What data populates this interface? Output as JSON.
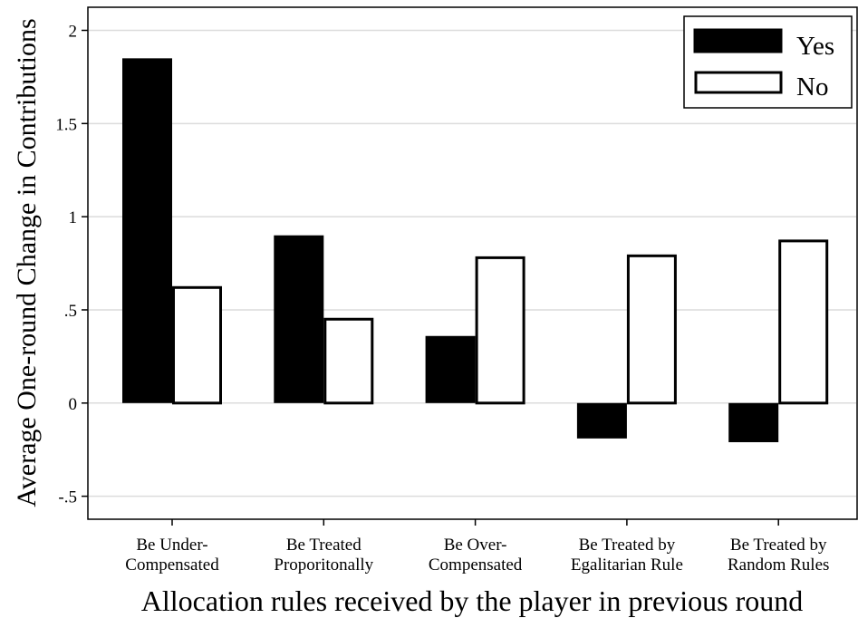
{
  "chart_data": {
    "type": "bar",
    "title": "",
    "xlabel": "Allocation rules received by the player in previous round",
    "ylabel": "Average One-round Change in Contributions",
    "ylim": [
      -0.62,
      2.12
    ],
    "yticks": [
      {
        "value": 2,
        "label": "2"
      },
      {
        "value": 1.5,
        "label": "1.5"
      },
      {
        "value": 1,
        "label": "1"
      },
      {
        "value": 0.5,
        "label": ".5"
      },
      {
        "value": 0,
        "label": "0"
      },
      {
        "value": -0.5,
        "label": "-.5"
      }
    ],
    "grid": true,
    "legend_position": "top-right",
    "categories": [
      [
        "Be Under-",
        "Compensated"
      ],
      [
        "Be Treated",
        "Proporitonally"
      ],
      [
        "Be Over-",
        "Compensated"
      ],
      [
        "Be Treated by",
        "Egalitarian Rule"
      ],
      [
        "Be Treated by",
        "Random Rules"
      ]
    ],
    "series": [
      {
        "name": "Yes",
        "color": "#000000",
        "filled": true,
        "values": [
          1.85,
          0.9,
          0.36,
          -0.19,
          -0.21
        ]
      },
      {
        "name": "No",
        "color": "#ffffff",
        "filled": false,
        "values": [
          0.62,
          0.45,
          0.78,
          0.79,
          0.87
        ]
      }
    ]
  }
}
